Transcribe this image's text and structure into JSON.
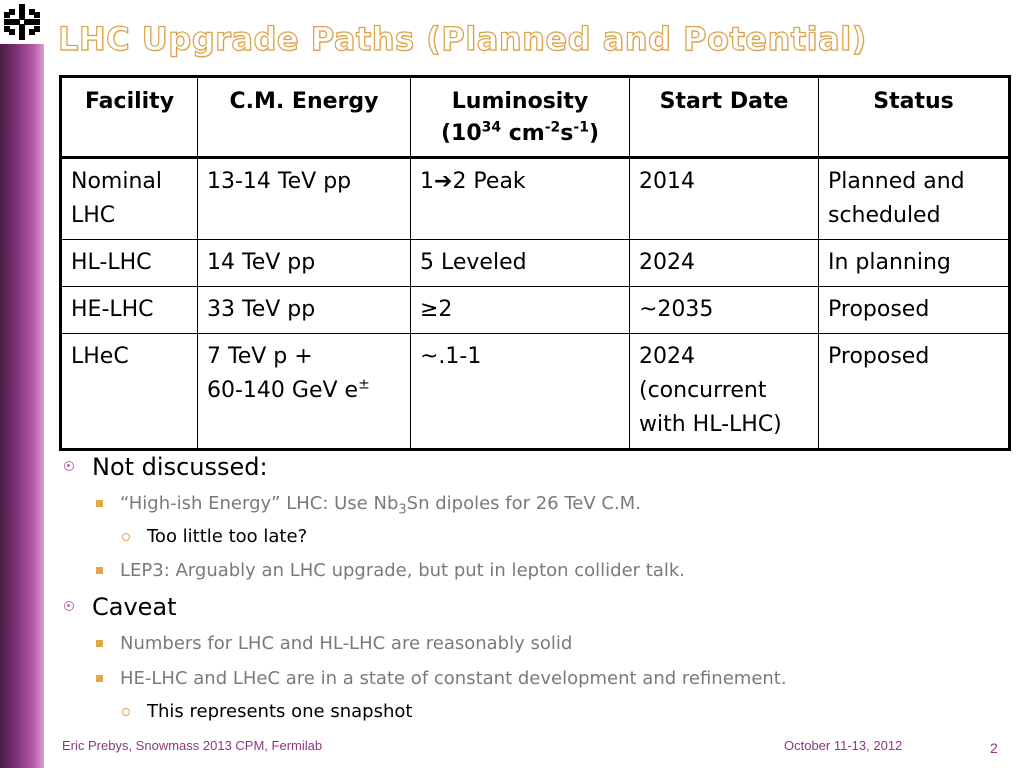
{
  "slide": {
    "title": "LHC Upgrade Paths (Planned and Potential)",
    "logo_icon": "fermilab-logo-icon",
    "accent_color": "#7b2f72",
    "title_color": "#d9a24a"
  },
  "table": {
    "headers": {
      "facility": "Facility",
      "energy": "C.M. Energy",
      "lumi_line1": "Luminosity",
      "lumi_open": "(10",
      "lumi_exp1": "34",
      "lumi_unit1": " cm",
      "lumi_exp2": "-2",
      "lumi_unit2": "s",
      "lumi_exp3": "-1",
      "lumi_close": ")",
      "start": "Start Date",
      "status": "Status"
    },
    "rows": [
      {
        "facility": "Nominal LHC",
        "energy": "13-14 TeV pp",
        "lumi_a": "1",
        "lumi_arrow": "➔",
        "lumi_b": "2 Peak",
        "start": "2014",
        "status": "Planned and scheduled"
      },
      {
        "facility": "HL-LHC",
        "energy": "14 TeV pp",
        "lumi": "5 Leveled",
        "start": "2024",
        "status": "In planning"
      },
      {
        "facility": "HE-LHC",
        "energy": "33 TeV pp",
        "lumi": "≥2",
        "start": "~2035",
        "status": "Proposed"
      },
      {
        "facility": "LHeC",
        "energy_line1": "7 TeV p +",
        "energy_line2": "60-140 GeV e",
        "energy_sup": "±",
        "lumi": "~.1-1",
        "start_line1": "2024",
        "start_line2": "(concurrent",
        "start_line3": "with HL-LHC)",
        "status": "Proposed"
      }
    ]
  },
  "bullets": {
    "b1": "Not discussed:",
    "b1_1_a": "“High-ish Energy” LHC: Use Nb",
    "b1_1_sub": "3",
    "b1_1_b": "Sn dipoles for 26 TeV C.M.",
    "b1_1_1": "Too little too late?",
    "b1_2": "LEP3: Arguably an LHC upgrade, but put in lepton collider talk.",
    "b2": "Caveat",
    "b2_1": "Numbers for LHC and HL-LHC are reasonably solid",
    "b2_2": "HE-LHC and LHeC are in a state of constant development and refinement.",
    "b2_2_1": "This represents one snapshot"
  },
  "footer": {
    "author": "Eric Prebys, Snowmass 2013 CPM, Fermilab",
    "date": "October 11-13, 2012",
    "page": "2"
  }
}
